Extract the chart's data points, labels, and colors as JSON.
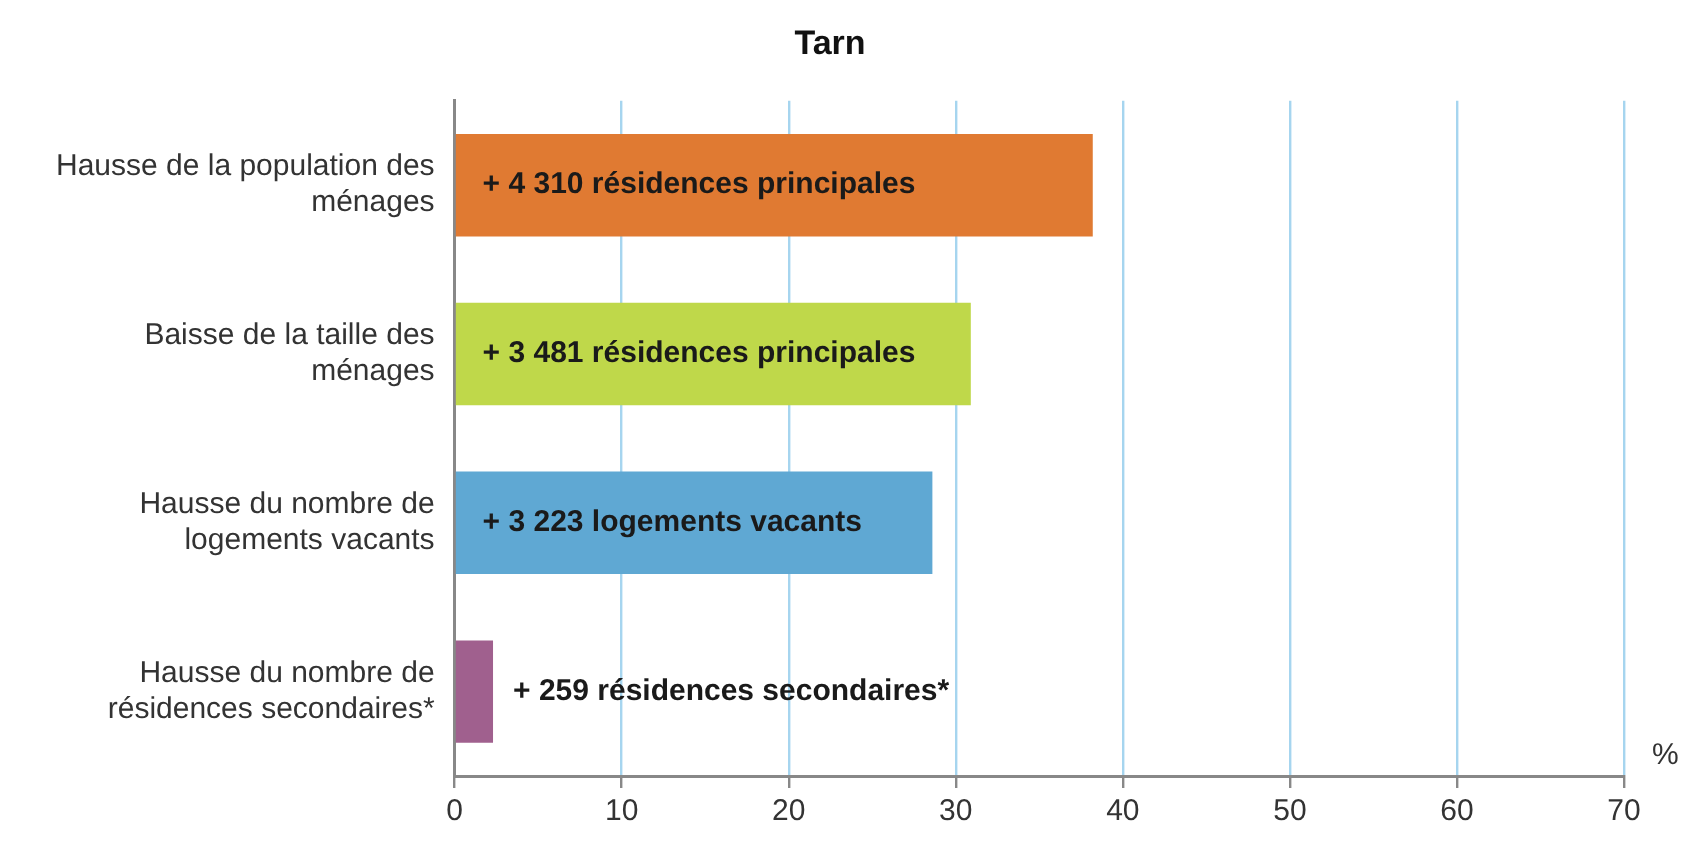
{
  "chart_data": {
    "type": "bar",
    "orientation": "horizontal",
    "title": "Tarn",
    "xlabel": "%",
    "categories": [
      "Hausse de la population des ménages",
      "Baisse de la taille des ménages",
      "Hausse du nombre de logements vacants",
      "Hausse du nombre de résidences secondaires*"
    ],
    "values": [
      38.2,
      30.9,
      28.6,
      2.3
    ],
    "colors": [
      "#e07a32",
      "#bfd84a",
      "#5fa8d3",
      "#a0608e"
    ],
    "annotations": [
      "+ 4 310 résidences principales",
      "+ 3 481 résidences principales",
      "+ 3 223 logements vacants",
      "+ 259 résidences secondaires*"
    ],
    "xlim": [
      0,
      70
    ],
    "xticks": [
      0,
      10,
      20,
      30,
      40,
      50,
      60,
      70
    ],
    "grid": "x",
    "legend": false
  }
}
